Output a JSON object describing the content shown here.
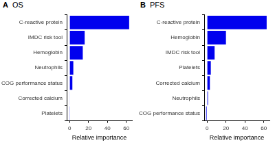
{
  "chart_data": [
    {
      "type": "bar",
      "annotations": [
        "A"
      ],
      "title": "OS",
      "orientation": "horizontal",
      "categories": [
        "C-reactive protein",
        "IMDC risk tool",
        "Hemoglobin",
        "Neutrophils",
        "ECOG performance status",
        "Corrected calcium",
        "Platelets"
      ],
      "values": [
        63,
        16,
        14,
        4,
        3,
        0.3,
        0.2
      ],
      "color": "#0000ee",
      "x_label": "Relative importance",
      "xlim": [
        -3,
        66
      ],
      "xticks": [
        0,
        20,
        40,
        60
      ],
      "grid": false
    },
    {
      "type": "bar",
      "annotations": [
        "B"
      ],
      "title": "PFS",
      "orientation": "horizontal",
      "categories": [
        "C-reactive protein",
        "Hemoglobin",
        "IMDC risk tool",
        "Platelets",
        "Corrected calcium",
        "Neutrophils",
        "ECOG performance status"
      ],
      "values": [
        63,
        20,
        8,
        4,
        3,
        1,
        -1
      ],
      "color": "#0000ee",
      "x_label": "Relative importance",
      "xlim": [
        -3,
        66
      ],
      "xticks": [
        0,
        20,
        40,
        60
      ],
      "grid": false
    }
  ]
}
